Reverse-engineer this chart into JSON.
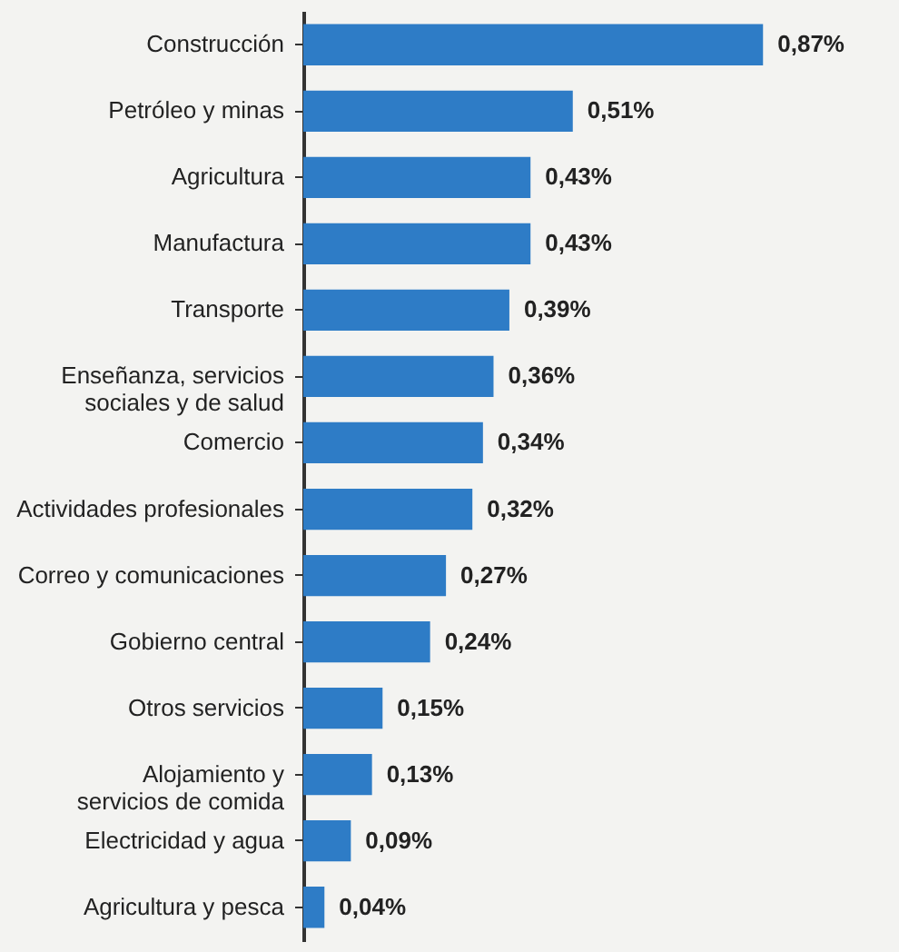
{
  "chart_data": {
    "type": "bar",
    "orientation": "horizontal",
    "categories": [
      "Construcción",
      "Petróleo y minas",
      "Agricultura",
      "Manufactura",
      "Transporte",
      "Enseñanza, servicios\nsociales y de salud",
      "Comercio",
      "Actividades profesionales",
      "Correo y comunicaciones",
      "Gobierno central",
      "Otros servicios",
      "Alojamiento y\nservicios de comida",
      "Electricidad y agua",
      "Agricultura y pesca"
    ],
    "values": [
      0.87,
      0.51,
      0.43,
      0.43,
      0.39,
      0.36,
      0.34,
      0.32,
      0.27,
      0.24,
      0.15,
      0.13,
      0.09,
      0.04
    ],
    "value_labels": [
      "0,87%",
      "0,51%",
      "0,43%",
      "0,43%",
      "0,39%",
      "0,36%",
      "0,34%",
      "0,32%",
      "0,27%",
      "0,24%",
      "0,15%",
      "0,13%",
      "0,09%",
      "0,04%"
    ],
    "color": "#2e7cc6"
  }
}
